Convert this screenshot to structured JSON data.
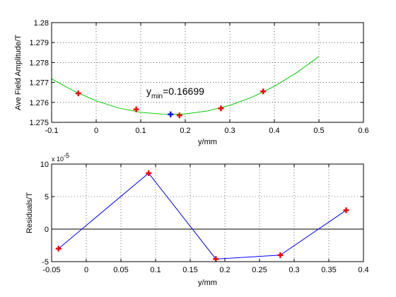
{
  "chart_data": [
    {
      "type": "scatter",
      "xlabel": "y/mm",
      "ylabel": "Ave Field Amplitude/T",
      "xlim": [
        -0.1,
        0.6
      ],
      "ylim": [
        1.275,
        1.28
      ],
      "xticks": [
        -0.1,
        0,
        0.1,
        0.2,
        0.3,
        0.4,
        0.5,
        0.6
      ],
      "xtick_labels": [
        "-0.1",
        "0",
        "0.1",
        "0.2",
        "0.3",
        "0.4",
        "0.5",
        "0.6"
      ],
      "yticks": [
        1.275,
        1.276,
        1.277,
        1.278,
        1.279,
        1.28
      ],
      "ytick_labels": [
        "1.275",
        "1.276",
        "1.277",
        "1.278",
        "1.279",
        "1.28"
      ],
      "grid": true,
      "annotation": {
        "main": "y",
        "sub": "min",
        "suffix": "=0.16699"
      },
      "series": [
        {
          "style": "markers",
          "color": "#ff0000",
          "x": [
            -0.04,
            0.09,
            0.187,
            0.28,
            0.375
          ],
          "y": [
            1.27645,
            1.27565,
            1.27535,
            1.2757,
            1.27655
          ]
        },
        {
          "style": "line",
          "color": "#00cc00",
          "x": [
            -0.1,
            -0.05,
            0.0,
            0.05,
            0.1,
            0.15,
            0.16699,
            0.2,
            0.25,
            0.3,
            0.35,
            0.4,
            0.45,
            0.5
          ],
          "y": [
            1.27718,
            1.27657,
            1.27608,
            1.27572,
            1.2755,
            1.27541,
            1.2754,
            1.27542,
            1.27557,
            1.27585,
            1.27626,
            1.27681,
            1.27749,
            1.2783
          ]
        },
        {
          "style": "markers",
          "color": "#0000ff",
          "x": [
            0.16699
          ],
          "y": [
            1.2754
          ]
        }
      ]
    },
    {
      "type": "line",
      "xlabel": "y/mm",
      "ylabel": "Residuals/T",
      "scale_label": "x 10",
      "scale_exp": "-5",
      "xlim": [
        -0.05,
        0.4
      ],
      "ylim": [
        -5,
        10
      ],
      "xticks": [
        -0.05,
        0,
        0.05,
        0.1,
        0.15,
        0.2,
        0.25,
        0.3,
        0.35,
        0.4
      ],
      "xtick_labels": [
        "-0.05",
        "0",
        "0.05",
        "0.1",
        "0.15",
        "0.2",
        "0.25",
        "0.3",
        "0.35",
        "0.4"
      ],
      "yticks": [
        -5,
        0,
        5,
        10
      ],
      "ytick_labels": [
        "-5",
        "0",
        "5",
        "10"
      ],
      "grid": true,
      "zero_line": true,
      "series": [
        {
          "color": "#0000ff",
          "marker_color": "#ff0000",
          "x": [
            -0.04,
            0.09,
            0.187,
            0.28,
            0.375
          ],
          "y": [
            -3.0,
            8.6,
            -4.6,
            -4.0,
            2.9
          ]
        }
      ]
    }
  ]
}
